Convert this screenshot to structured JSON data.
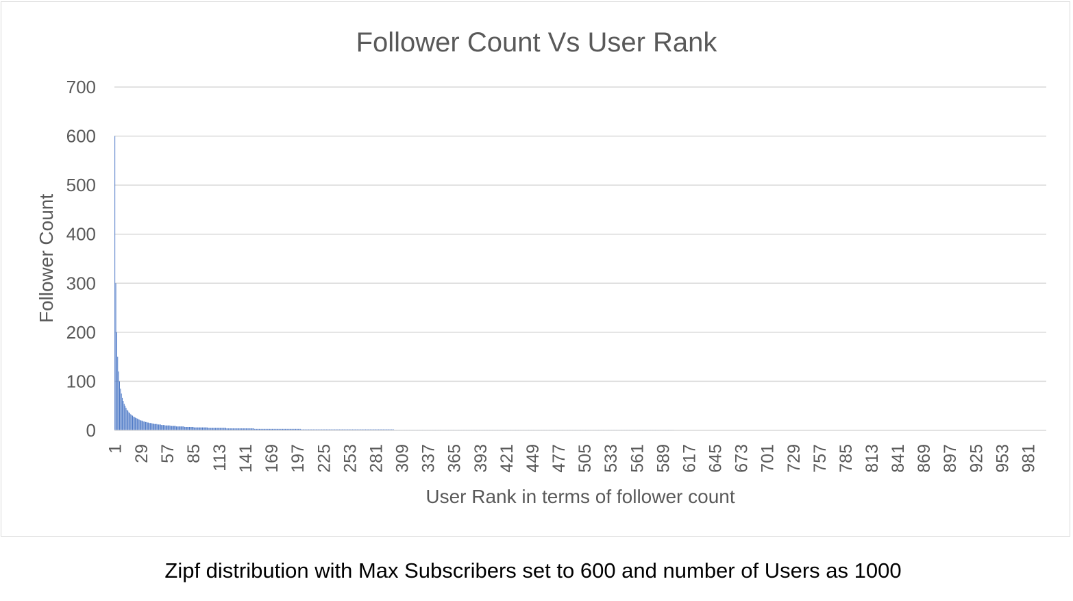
{
  "chart_data": {
    "type": "bar",
    "title": "Follower Count Vs User Rank",
    "xlabel": "User Rank in terms of follower count",
    "ylabel": "Follower Count",
    "ylim": [
      0,
      700
    ],
    "yticks": [
      0,
      100,
      200,
      300,
      400,
      500,
      600,
      700
    ],
    "x_range": [
      1,
      1000
    ],
    "x_tick_labels": [
      "1",
      "29",
      "57",
      "85",
      "113",
      "141",
      "169",
      "197",
      "225",
      "253",
      "281",
      "309",
      "337",
      "365",
      "393",
      "421",
      "449",
      "477",
      "505",
      "533",
      "561",
      "589",
      "617",
      "645",
      "673",
      "701",
      "729",
      "757",
      "785",
      "813",
      "841",
      "869",
      "897",
      "925",
      "953",
      "981"
    ],
    "grid": true,
    "legend": "none",
    "bar_color": "#4472c4",
    "series": [
      {
        "values_rule": "floor(600 / rank)",
        "values": [
          600,
          300,
          200,
          150,
          120,
          100,
          85,
          75,
          66,
          60,
          54,
          50,
          46,
          42,
          40,
          37,
          35,
          33,
          31,
          30
        ]
      }
    ]
  },
  "caption": "Zipf distribution with Max Subscribers set to 600 and number of Users as 1000"
}
